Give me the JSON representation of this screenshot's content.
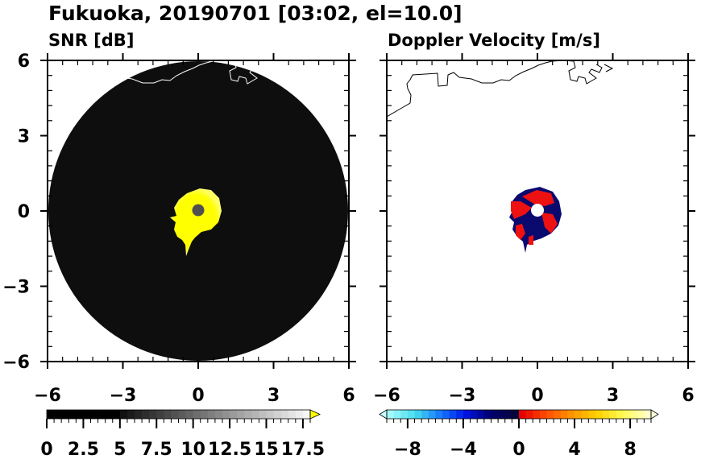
{
  "title": "Fukuoka, 20190701 [03:02, el=10.0]",
  "chart_data": [
    {
      "type": "heatmap",
      "title": "SNR [dB]",
      "xlim": [
        -6,
        6
      ],
      "ylim": [
        -6,
        6
      ],
      "xticks": [
        "−6",
        "−3",
        "0",
        "3",
        "6"
      ],
      "yticks": [
        "6",
        "3",
        "0",
        "−3",
        "−6"
      ],
      "tick_values": [
        -6,
        -3,
        0,
        3,
        6
      ],
      "colorbar": {
        "range": [
          0,
          18
        ],
        "step": 0.5,
        "extend": "max",
        "ticks": [
          0,
          2.5,
          5,
          7.5,
          10,
          12.5,
          15,
          17.5
        ],
        "tick_labels": [
          "0",
          "2.5",
          "5",
          "7.5",
          "10",
          "12.5",
          "15",
          "17.5"
        ],
        "over_color": "#ffff00"
      },
      "echo_color": "#ffff00",
      "echo_radius_km": 1.0,
      "radar_range_km": 6
    },
    {
      "type": "heatmap",
      "title": "Doppler Velocity [m/s]",
      "xlim": [
        -6,
        6
      ],
      "ylim": [
        -6,
        6
      ],
      "xticks": [
        "−6",
        "−3",
        "0",
        "3",
        "6"
      ],
      "yticks": [
        "6",
        "3",
        "0",
        "−3",
        "−6"
      ],
      "tick_values": [
        -6,
        -3,
        0,
        3,
        6
      ],
      "colorbar": {
        "range": [
          -9.5,
          9.5
        ],
        "step": 0.5,
        "extend": "both",
        "ticks": [
          -8,
          -4,
          0,
          4,
          8
        ],
        "tick_labels": [
          "−8",
          "−4",
          "0",
          "4",
          "8"
        ]
      },
      "echo_colors": {
        "negative": "#0a0a6e",
        "positive": "#ee1111"
      },
      "echo_radius_km": 1.0
    }
  ]
}
